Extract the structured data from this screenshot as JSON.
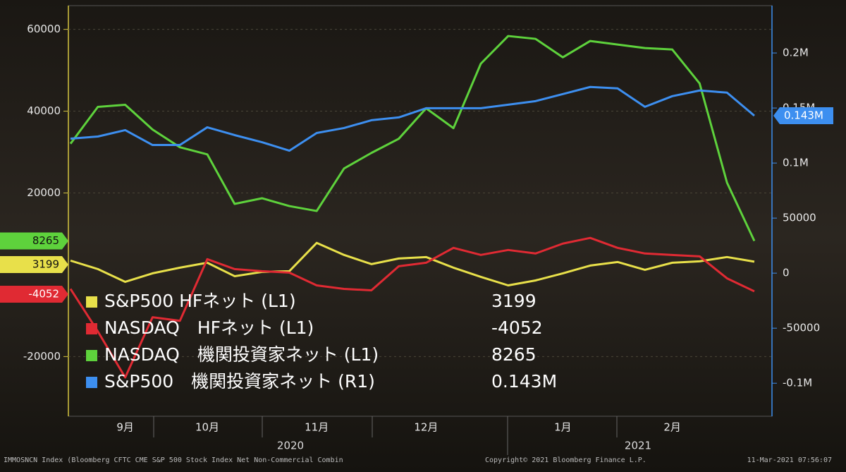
{
  "chart_data": {
    "type": "line",
    "categories": [
      null,
      null,
      "9月",
      null,
      null,
      "10月",
      null,
      null,
      null,
      "11月",
      null,
      null,
      null,
      "12月",
      null,
      null,
      null,
      null,
      "1月",
      null,
      null,
      null,
      "2月",
      null,
      null,
      null
    ],
    "year_labels": [
      "2020",
      "2021"
    ],
    "ylim": [
      -34600,
      65800
    ],
    "yticks": [
      60000,
      40000,
      20000,
      -20000
    ],
    "y2lim": [
      -130000,
      243000
    ],
    "y2ticks": [
      {
        "value": 200000,
        "label": "0.2M"
      },
      {
        "value": 150000,
        "label": "0.15M"
      },
      {
        "value": 100000,
        "label": "0.1M"
      },
      50000,
      0,
      -50000,
      {
        "value": -100000,
        "label": "-0.1M"
      }
    ],
    "series": [
      {
        "name": "S&P500 HFネット (L1)",
        "color": "#e8e04a",
        "values": [
          3460,
          1390,
          -1730,
          350,
          1730,
          2940,
          -350,
          690,
          870,
          7790,
          4850,
          2600,
          3980,
          4330,
          1730,
          -520,
          -2600,
          -1390,
          350,
          2250,
          3120,
          1210,
          2940,
          3290,
          4330,
          3199
        ]
      },
      {
        "name": "NASDAQ　HFネット (L1)",
        "color": "#e02a33",
        "values": [
          -3460,
          -13860,
          -25110,
          -10390,
          -11260,
          3810,
          1390,
          870,
          520,
          -2600,
          -3460,
          -3810,
          2080,
          2940,
          6580,
          4850,
          6060,
          5200,
          7620,
          9010,
          6580,
          5200,
          4850,
          4500,
          -870,
          -4052
        ]
      },
      {
        "name": "NASDAQ　機関投資家ネット (L1)",
        "color": "#5ed23c",
        "values": [
          32040,
          41050,
          41570,
          35500,
          31180,
          29440,
          17320,
          18710,
          16800,
          15590,
          25980,
          29790,
          33250,
          40700,
          35850,
          51610,
          58370,
          57680,
          53170,
          57160,
          56290,
          55420,
          55080,
          46760,
          22520,
          8265
        ]
      },
      {
        "name": "S&P500　機関投資家ネット (R1)",
        "color": "#3d8ff0",
        "axis": "y2",
        "last_label": "0.143M",
        "values": [
          122190,
          124120,
          129910,
          116400,
          116400,
          132480,
          125400,
          118970,
          111250,
          127330,
          131830,
          138910,
          141480,
          149840,
          149840,
          149840,
          153060,
          156270,
          162700,
          169130,
          167840,
          151120,
          160770,
          165920,
          163990,
          143000
        ]
      }
    ],
    "footer": {
      "left": "IMMOSNCN Index (Bloomberg CFTC CME S&P 500 Stock Index Net Non-Commercial Combin",
      "copyright": "Copyright© 2021 Bloomberg Finance L.P.",
      "date": "11-Mar-2021 07:56:07"
    }
  }
}
